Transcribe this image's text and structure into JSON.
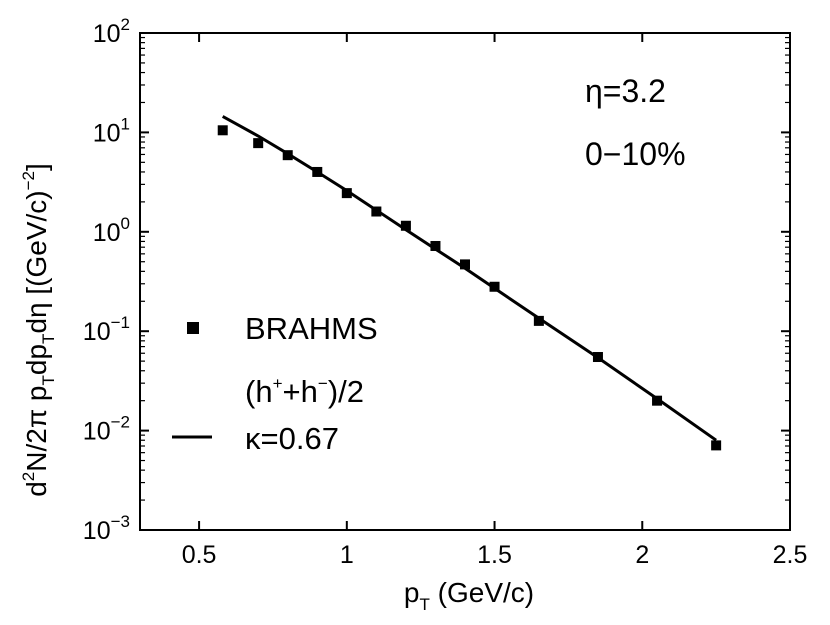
{
  "chart_data": {
    "type": "scatter",
    "xlabel": {
      "main": "p",
      "sub": "T",
      "rest": " (GeV/c)"
    },
    "ylabel": {
      "d": "d",
      "sup2": "2",
      "mid": "N/2π p",
      "subT1": "T",
      "dp": "dp",
      "subT2": "T",
      "deta": "dη [(GeV/c)",
      "supneg2": "−2",
      "close": "]"
    },
    "xlim": [
      0.3,
      2.5
    ],
    "ylim": [
      0.001,
      100
    ],
    "yscale": "log",
    "x_ticks": [
      {
        "value": 0.5,
        "label": "0.5"
      },
      {
        "value": 1.0,
        "label": "1"
      },
      {
        "value": 1.5,
        "label": "1.5"
      },
      {
        "value": 2.0,
        "label": "2"
      },
      {
        "value": 2.5,
        "label": "2.5"
      }
    ],
    "y_ticks": [
      {
        "value": 100,
        "base": "10",
        "exp": "2"
      },
      {
        "value": 10,
        "base": "10",
        "exp": "1"
      },
      {
        "value": 1,
        "base": "10",
        "exp": "0"
      },
      {
        "value": 0.1,
        "base": "10",
        "exp": "−1"
      },
      {
        "value": 0.01,
        "base": "10",
        "exp": "−2"
      },
      {
        "value": 0.001,
        "base": "10",
        "exp": "−3"
      }
    ],
    "annotations": [
      "η=3.2",
      "0−10%"
    ],
    "legend": {
      "position": "lower-left",
      "entries": [
        {
          "marker": "square",
          "line1": "BRAHMS",
          "line2a": "(h",
          "line2sup1": "+",
          "line2b": "+h",
          "line2sup2": "−",
          "line2c": ")/2"
        },
        {
          "marker": "line",
          "label": "κ=0.67"
        }
      ]
    },
    "series": [
      {
        "name": "BRAHMS (h++h−)/2",
        "style": "square",
        "x": [
          0.58,
          0.7,
          0.8,
          0.9,
          1.0,
          1.1,
          1.2,
          1.3,
          1.4,
          1.5,
          1.65,
          1.85,
          2.05,
          2.25
        ],
        "y": [
          10.5,
          7.8,
          5.9,
          4.0,
          2.45,
          1.6,
          1.15,
          0.72,
          0.47,
          0.28,
          0.127,
          0.055,
          0.02,
          0.0071
        ]
      },
      {
        "name": "κ=0.67",
        "style": "line",
        "x": [
          0.58,
          0.7,
          0.8,
          0.9,
          1.0,
          1.1,
          1.2,
          1.3,
          1.4,
          1.5,
          1.65,
          1.85,
          2.05,
          2.25
        ],
        "y": [
          14.5,
          9.2,
          6.1,
          4.0,
          2.6,
          1.65,
          1.05,
          0.67,
          0.43,
          0.27,
          0.135,
          0.054,
          0.021,
          0.008
        ]
      }
    ],
    "grid": false
  }
}
